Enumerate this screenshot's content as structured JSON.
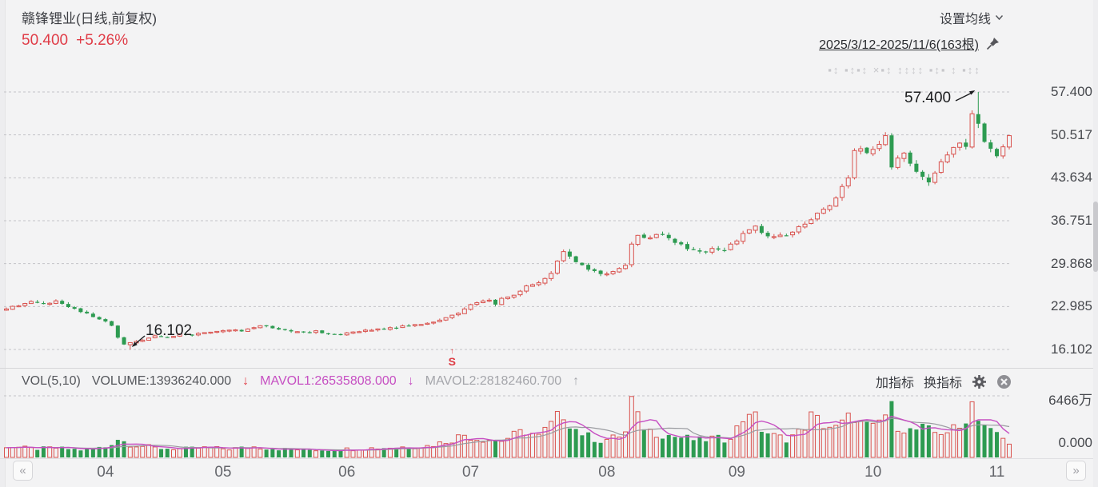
{
  "header": {
    "title": "赣锋锂业(日线,前复权)",
    "price": "50.400",
    "change": "+5.26%",
    "ma_settings_label": "设置均线",
    "date_range": "2025/3/12-2025/11/6(163根)",
    "faded_icons_text": "▪↕ ▪↕▪↕  ×▪↕ ↕↕↕↕ ▪↕▪  ↕  ▪↕↕"
  },
  "volume_header": {
    "indicator": "VOL(5,10)",
    "volume_label": "VOLUME:13936240.000",
    "volume_arrow": "↓",
    "mavol1_label": "MAVOL1:26535808.000",
    "mavol1_arrow": "↓",
    "mavol2_label": "MAVOL2:28182460.700",
    "mavol2_arrow": "↑",
    "add_indicator": "加指标",
    "switch_indicator": "换指标"
  },
  "price_axis": {
    "ticks": [
      "57.400",
      "50.517",
      "43.634",
      "36.751",
      "29.868",
      "22.985",
      "16.102"
    ]
  },
  "volume_axis": {
    "top": "6466万",
    "bottom": "0.000"
  },
  "x_axis": {
    "months": [
      "04",
      "05",
      "06",
      "07",
      "08",
      "09",
      "10",
      "11"
    ],
    "prev_label": "«",
    "next_label": "»"
  },
  "annotations": {
    "high": "57.400",
    "low": "16.102",
    "trade_marker_arrow": "↑",
    "trade_marker": "S"
  },
  "colors": {
    "up": "#d9534f",
    "down": "#2d9b51",
    "price_red": "#e03c47",
    "mavol1": "#c64fc2",
    "mavol2": "#9a9ba0",
    "grid": "#c3c3c7",
    "bg": "#f3f3f4"
  },
  "chart_data": {
    "type": "candlestick",
    "symbol": "赣锋锂业",
    "period": "日线",
    "adjust": "前复权",
    "bars": 163,
    "date_start": "2025/3/12",
    "date_end": "2025/11/6",
    "y_ticks": [
      57.4,
      50.517,
      43.634,
      36.751,
      29.868,
      22.985,
      16.102
    ],
    "vol_top": 64660000,
    "high": {
      "index": 157,
      "value": 57.4
    },
    "low": {
      "index": 20,
      "value": 16.102
    },
    "last": {
      "close": 50.4,
      "change_pct": 5.26,
      "volume": 13936240,
      "mavol1": 26535808,
      "mavol2": 28182460.7
    },
    "marker": {
      "index": 72,
      "label": "S"
    },
    "month_indices": [
      16,
      35,
      55,
      75,
      97,
      118,
      140,
      160
    ],
    "close_anchors": [
      [
        0,
        22.6
      ],
      [
        2,
        23.1
      ],
      [
        4,
        23.8
      ],
      [
        6,
        23.4
      ],
      [
        8,
        23.9
      ],
      [
        10,
        22.9
      ],
      [
        12,
        22.1
      ],
      [
        14,
        21.3
      ],
      [
        16,
        20.6
      ],
      [
        17,
        19.9
      ],
      [
        18,
        18.0
      ],
      [
        19,
        16.9
      ],
      [
        20,
        17.2
      ],
      [
        21,
        17.4
      ],
      [
        22,
        17.6
      ],
      [
        24,
        18.3
      ],
      [
        26,
        18.1
      ],
      [
        28,
        18.6
      ],
      [
        30,
        18.4
      ],
      [
        32,
        18.8
      ],
      [
        34,
        19.0
      ],
      [
        36,
        19.2
      ],
      [
        38,
        19.0
      ],
      [
        40,
        19.6
      ],
      [
        42,
        19.9
      ],
      [
        44,
        19.3
      ],
      [
        46,
        19.0
      ],
      [
        48,
        18.9
      ],
      [
        50,
        19.1
      ],
      [
        52,
        18.6
      ],
      [
        54,
        18.4
      ],
      [
        56,
        18.9
      ],
      [
        58,
        19.2
      ],
      [
        60,
        19.4
      ],
      [
        62,
        19.6
      ],
      [
        64,
        19.9
      ],
      [
        66,
        20.1
      ],
      [
        68,
        20.3
      ],
      [
        70,
        20.8
      ],
      [
        72,
        21.6
      ],
      [
        74,
        22.6
      ],
      [
        75,
        23.3
      ],
      [
        76,
        23.6
      ],
      [
        78,
        24.0
      ],
      [
        79,
        23.3
      ],
      [
        80,
        24.3
      ],
      [
        82,
        24.8
      ],
      [
        84,
        26.3
      ],
      [
        86,
        26.8
      ],
      [
        88,
        28.3
      ],
      [
        90,
        31.8
      ],
      [
        91,
        31.0
      ],
      [
        92,
        30.1
      ],
      [
        94,
        28.9
      ],
      [
        96,
        28.2
      ],
      [
        98,
        28.6
      ],
      [
        100,
        29.6
      ],
      [
        101,
        33.0
      ],
      [
        102,
        34.4
      ],
      [
        104,
        34.0
      ],
      [
        106,
        34.6
      ],
      [
        108,
        33.2
      ],
      [
        110,
        32.2
      ],
      [
        112,
        31.8
      ],
      [
        114,
        32.3
      ],
      [
        116,
        32.0
      ],
      [
        118,
        33.5
      ],
      [
        120,
        35.3
      ],
      [
        121,
        35.9
      ],
      [
        122,
        34.8
      ],
      [
        124,
        34.2
      ],
      [
        126,
        34.4
      ],
      [
        128,
        35.8
      ],
      [
        130,
        36.9
      ],
      [
        132,
        38.6
      ],
      [
        134,
        40.4
      ],
      [
        136,
        43.6
      ],
      [
        137,
        48.0
      ],
      [
        138,
        48.3
      ],
      [
        139,
        47.6
      ],
      [
        140,
        48.2
      ],
      [
        141,
        49.0
      ],
      [
        142,
        50.4
      ],
      [
        143,
        45.3
      ],
      [
        144,
        46.8
      ],
      [
        145,
        47.6
      ],
      [
        146,
        45.9
      ],
      [
        147,
        44.6
      ],
      [
        148,
        43.8
      ],
      [
        149,
        42.9
      ],
      [
        150,
        44.4
      ],
      [
        151,
        46.2
      ],
      [
        152,
        47.3
      ],
      [
        153,
        48.5
      ],
      [
        154,
        49.2
      ],
      [
        155,
        48.6
      ],
      [
        156,
        53.9
      ],
      [
        157,
        52.3
      ],
      [
        158,
        49.4
      ],
      [
        159,
        48.3
      ],
      [
        160,
        47.1
      ],
      [
        161,
        48.6
      ],
      [
        162,
        50.4
      ]
    ],
    "volume_anchors_m": [
      [
        0,
        12
      ],
      [
        4,
        9
      ],
      [
        8,
        10
      ],
      [
        12,
        8
      ],
      [
        16,
        11
      ],
      [
        18,
        20
      ],
      [
        20,
        14
      ],
      [
        24,
        10
      ],
      [
        28,
        9
      ],
      [
        32,
        10
      ],
      [
        36,
        9
      ],
      [
        40,
        11
      ],
      [
        44,
        9
      ],
      [
        48,
        8
      ],
      [
        52,
        8
      ],
      [
        56,
        9
      ],
      [
        60,
        10
      ],
      [
        64,
        11
      ],
      [
        68,
        12
      ],
      [
        70,
        15
      ],
      [
        72,
        19
      ],
      [
        74,
        24
      ],
      [
        76,
        20
      ],
      [
        80,
        18
      ],
      [
        84,
        28
      ],
      [
        86,
        22
      ],
      [
        88,
        34
      ],
      [
        90,
        47
      ],
      [
        91,
        38
      ],
      [
        92,
        30
      ],
      [
        94,
        22
      ],
      [
        96,
        18
      ],
      [
        98,
        20
      ],
      [
        100,
        26
      ],
      [
        101,
        64
      ],
      [
        102,
        40
      ],
      [
        104,
        28
      ],
      [
        106,
        25
      ],
      [
        108,
        22
      ],
      [
        110,
        20
      ],
      [
        112,
        18
      ],
      [
        114,
        20
      ],
      [
        116,
        19
      ],
      [
        118,
        30
      ],
      [
        120,
        52
      ],
      [
        121,
        40
      ],
      [
        122,
        30
      ],
      [
        124,
        22
      ],
      [
        126,
        20
      ],
      [
        128,
        26
      ],
      [
        130,
        42
      ],
      [
        132,
        35
      ],
      [
        134,
        30
      ],
      [
        136,
        40
      ],
      [
        137,
        45
      ],
      [
        138,
        35
      ],
      [
        140,
        30
      ],
      [
        142,
        45
      ],
      [
        143,
        50
      ],
      [
        144,
        35
      ],
      [
        146,
        28
      ],
      [
        148,
        30
      ],
      [
        150,
        26
      ],
      [
        152,
        28
      ],
      [
        154,
        30
      ],
      [
        156,
        58
      ],
      [
        157,
        45
      ],
      [
        158,
        35
      ],
      [
        159,
        28
      ],
      [
        160,
        24
      ],
      [
        161,
        20
      ],
      [
        162,
        13.93624
      ]
    ]
  }
}
